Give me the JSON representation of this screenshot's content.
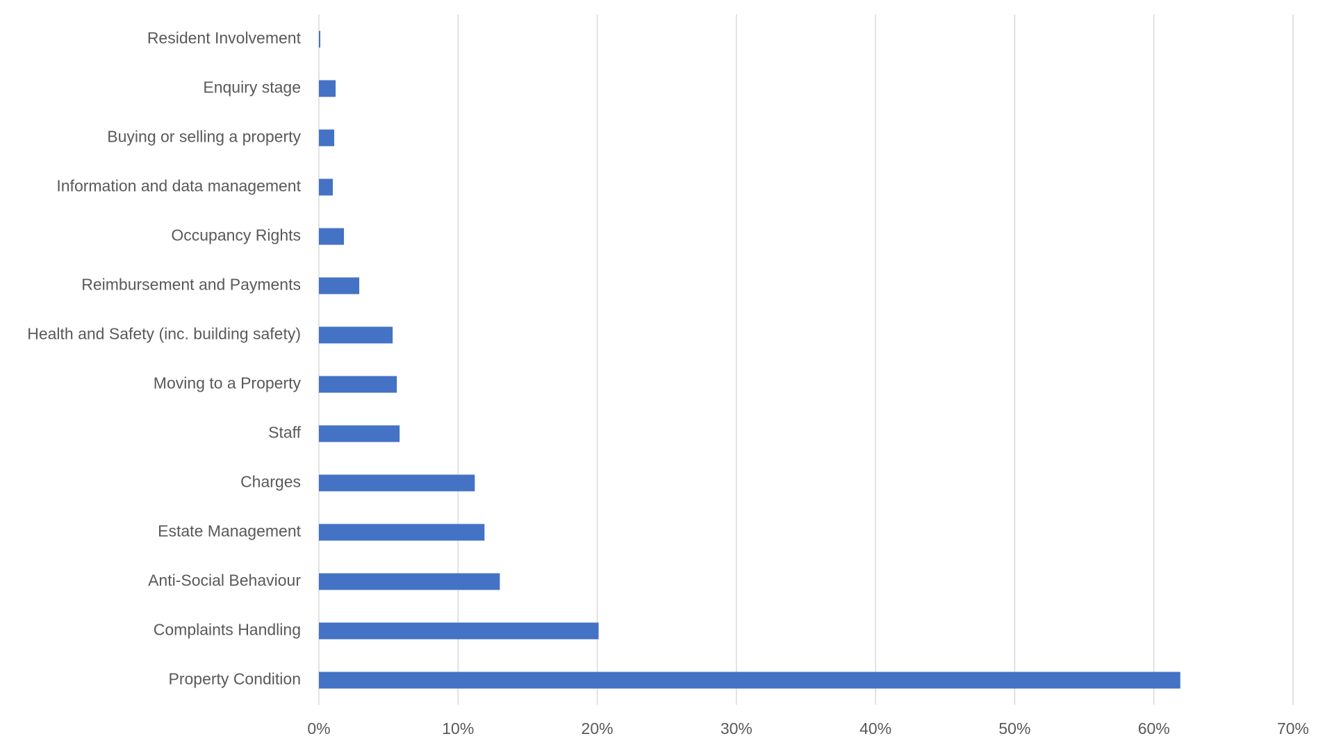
{
  "chart_data": {
    "type": "hbar",
    "categories": [
      "Resident Involvement",
      "Enquiry stage",
      "Buying or selling a property",
      "Information and data management",
      "Occupancy Rights",
      "Reimbursement and Payments",
      "Health and Safety (inc. building safety)",
      "Moving to a Property",
      "Staff",
      "Charges",
      "Estate Management",
      "Anti-Social Behaviour",
      "Complaints Handling",
      "Property Condition"
    ],
    "values": [
      0.1,
      1.2,
      1.1,
      1.0,
      1.8,
      2.9,
      5.3,
      5.6,
      5.8,
      11.2,
      11.9,
      13.0,
      20.1,
      61.9
    ],
    "color": "#4472c4",
    "xlim": [
      0,
      70
    ],
    "xticks": [
      {
        "value": 0,
        "label": "0%"
      },
      {
        "value": 10,
        "label": "10%"
      },
      {
        "value": 20,
        "label": "20%"
      },
      {
        "value": 30,
        "label": "30%"
      },
      {
        "value": 40,
        "label": "40%"
      },
      {
        "value": 50,
        "label": "50%"
      },
      {
        "value": 60,
        "label": "60%"
      },
      {
        "value": 70,
        "label": "70%"
      }
    ],
    "grid": true
  }
}
